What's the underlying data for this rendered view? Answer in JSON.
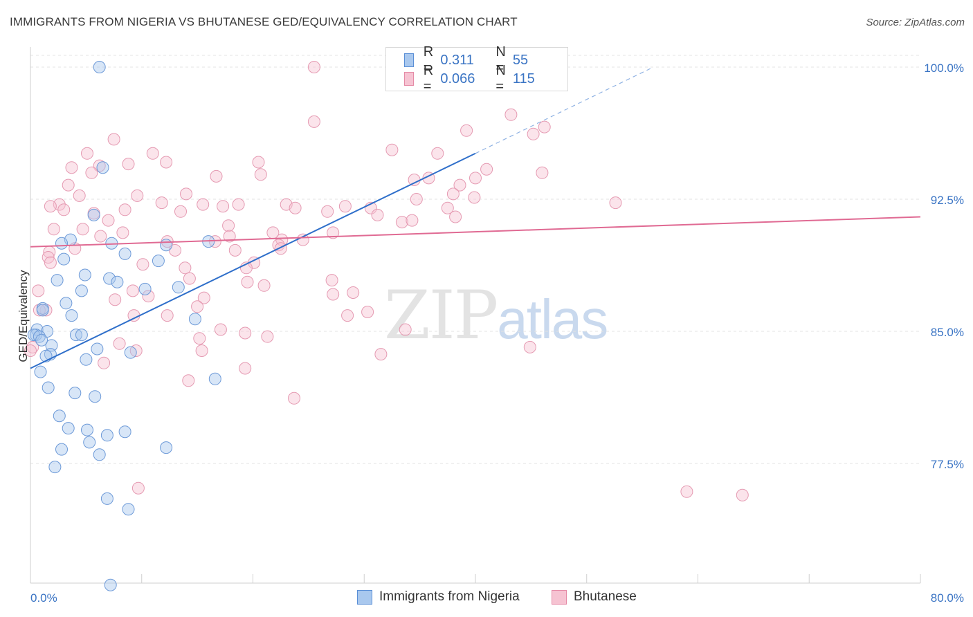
{
  "title": "IMMIGRANTS FROM NIGERIA VS BHUTANESE GED/EQUIVALENCY CORRELATION CHART",
  "source": "Source: ZipAtlas.com",
  "watermark": {
    "zip": "ZIP",
    "atlas": "atlas"
  },
  "legend": {
    "r_label": "R =",
    "n_label": "N =",
    "rows": [
      {
        "r": "0.311",
        "n": "55",
        "color": "#a9c8ee",
        "border": "#5a8fd6"
      },
      {
        "r": "0.066",
        "n": "115",
        "color": "#f6c3d2",
        "border": "#e58aa6"
      }
    ]
  },
  "bottom_legend": [
    "Immigrants from Nigeria",
    "Bhutanese"
  ],
  "colors": {
    "blue_fill": "#a9c8ee",
    "blue_line": "#2f6fca",
    "pink_fill": "#f6c3d2",
    "pink_line": "#e06a93",
    "axis_text": "#3a74c4"
  },
  "chart_data": {
    "type": "scatter",
    "title": "IMMIGRANTS FROM NIGERIA VS BHUTANESE GED/EQUIVALENCY CORRELATION CHART",
    "xlabel": "",
    "ylabel": "GED/Equivalency",
    "xlim": [
      0,
      80
    ],
    "ylim": [
      70.5,
      101.5
    ],
    "x_tick_labels": [
      "0.0%",
      "80.0%"
    ],
    "y_ticks": [
      77.5,
      85.0,
      92.5,
      100.0
    ],
    "y_tick_labels": [
      "77.5%",
      "85.0%",
      "92.5%",
      "100.0%"
    ],
    "grid": true,
    "legend_position": "top-center",
    "series": [
      {
        "name": "Immigrants from Nigeria",
        "r": 0.311,
        "n": 55,
        "trend": {
          "x0": 0.0,
          "y0": 82.9,
          "x1": 40.0,
          "y1": 95.1,
          "dash_x1": 56.0,
          "dash_y1": 100.0
        },
        "points": [
          [
            6.2,
            100.0
          ],
          [
            6.5,
            94.3
          ],
          [
            5.7,
            91.6
          ],
          [
            3.6,
            90.2
          ],
          [
            2.8,
            90.0
          ],
          [
            7.3,
            90.0
          ],
          [
            8.5,
            89.4
          ],
          [
            3.0,
            89.1
          ],
          [
            11.5,
            89.0
          ],
          [
            4.9,
            88.2
          ],
          [
            7.1,
            88.0
          ],
          [
            7.8,
            87.8
          ],
          [
            2.4,
            87.9
          ],
          [
            4.6,
            87.3
          ],
          [
            10.3,
            87.4
          ],
          [
            13.3,
            87.5
          ],
          [
            3.2,
            86.6
          ],
          [
            1.1,
            86.3
          ],
          [
            1.1,
            86.2
          ],
          [
            3.7,
            85.9
          ],
          [
            14.8,
            85.7
          ],
          [
            0.6,
            85.1
          ],
          [
            1.5,
            85.0
          ],
          [
            0.5,
            84.8
          ],
          [
            0.3,
            84.8
          ],
          [
            0.8,
            84.7
          ],
          [
            4.1,
            84.8
          ],
          [
            4.6,
            84.8
          ],
          [
            1.9,
            84.2
          ],
          [
            6.0,
            84.0
          ],
          [
            9.0,
            83.8
          ],
          [
            1.8,
            83.7
          ],
          [
            1.4,
            83.6
          ],
          [
            5.0,
            83.4
          ],
          [
            0.9,
            82.7
          ],
          [
            16.6,
            82.3
          ],
          [
            1.6,
            81.8
          ],
          [
            4.0,
            81.5
          ],
          [
            5.8,
            81.3
          ],
          [
            2.6,
            80.2
          ],
          [
            3.4,
            79.5
          ],
          [
            5.1,
            79.4
          ],
          [
            6.9,
            79.1
          ],
          [
            8.5,
            79.3
          ],
          [
            5.3,
            78.7
          ],
          [
            2.8,
            78.3
          ],
          [
            6.2,
            78.0
          ],
          [
            12.2,
            78.4
          ],
          [
            2.2,
            77.3
          ],
          [
            6.9,
            75.5
          ],
          [
            8.8,
            74.9
          ],
          [
            7.2,
            70.6
          ],
          [
            12.2,
            89.9
          ],
          [
            16.0,
            90.1
          ],
          [
            1.0,
            84.5
          ]
        ]
      },
      {
        "name": "Bhutanese",
        "r": 0.066,
        "n": 115,
        "trend": {
          "x0": 0.0,
          "y0": 89.8,
          "x1": 80.0,
          "y1": 91.5
        },
        "points": [
          [
            25.5,
            100.0
          ],
          [
            43.2,
            97.3
          ],
          [
            25.5,
            96.9
          ],
          [
            46.2,
            96.6
          ],
          [
            45.2,
            96.2
          ],
          [
            39.2,
            96.4
          ],
          [
            7.5,
            95.9
          ],
          [
            11.0,
            95.1
          ],
          [
            5.1,
            95.1
          ],
          [
            32.5,
            95.3
          ],
          [
            36.6,
            95.1
          ],
          [
            12.2,
            94.6
          ],
          [
            8.8,
            94.5
          ],
          [
            20.5,
            94.6
          ],
          [
            6.2,
            94.4
          ],
          [
            3.7,
            94.3
          ],
          [
            41.0,
            94.2
          ],
          [
            46.0,
            94.0
          ],
          [
            5.5,
            94.0
          ],
          [
            16.7,
            93.8
          ],
          [
            20.7,
            93.9
          ],
          [
            35.8,
            93.7
          ],
          [
            40.0,
            93.7
          ],
          [
            34.5,
            93.6
          ],
          [
            3.4,
            93.3
          ],
          [
            38.6,
            93.3
          ],
          [
            4.4,
            92.7
          ],
          [
            14.0,
            92.8
          ],
          [
            38.0,
            92.8
          ],
          [
            9.6,
            92.7
          ],
          [
            34.7,
            92.5
          ],
          [
            11.8,
            92.3
          ],
          [
            39.9,
            92.6
          ],
          [
            2.6,
            92.2
          ],
          [
            15.5,
            92.2
          ],
          [
            17.3,
            92.1
          ],
          [
            18.7,
            92.2
          ],
          [
            23.0,
            92.2
          ],
          [
            28.3,
            92.1
          ],
          [
            52.6,
            92.3
          ],
          [
            1.8,
            92.1
          ],
          [
            23.8,
            92.0
          ],
          [
            3.0,
            91.9
          ],
          [
            8.5,
            91.9
          ],
          [
            37.5,
            92.0
          ],
          [
            30.6,
            92.0
          ],
          [
            13.5,
            91.8
          ],
          [
            26.7,
            91.8
          ],
          [
            5.7,
            91.7
          ],
          [
            31.2,
            91.6
          ],
          [
            38.2,
            91.5
          ],
          [
            7.0,
            91.3
          ],
          [
            33.4,
            91.2
          ],
          [
            34.3,
            91.3
          ],
          [
            17.8,
            91.0
          ],
          [
            2.1,
            90.8
          ],
          [
            4.7,
            90.8
          ],
          [
            8.3,
            90.6
          ],
          [
            27.2,
            90.6
          ],
          [
            17.9,
            90.4
          ],
          [
            21.8,
            90.6
          ],
          [
            6.3,
            90.4
          ],
          [
            22.6,
            90.2
          ],
          [
            24.5,
            90.2
          ],
          [
            16.6,
            90.1
          ],
          [
            22.3,
            89.9
          ],
          [
            22.5,
            89.7
          ],
          [
            12.3,
            90.1
          ],
          [
            13.0,
            89.6
          ],
          [
            4.0,
            89.7
          ],
          [
            1.7,
            89.5
          ],
          [
            18.4,
            89.6
          ],
          [
            1.6,
            89.2
          ],
          [
            1.8,
            88.9
          ],
          [
            20.1,
            88.9
          ],
          [
            10.1,
            88.8
          ],
          [
            13.9,
            88.6
          ],
          [
            19.4,
            88.6
          ],
          [
            14.3,
            88.0
          ],
          [
            27.1,
            87.9
          ],
          [
            19.5,
            87.8
          ],
          [
            21.0,
            87.6
          ],
          [
            0.7,
            87.3
          ],
          [
            9.2,
            87.3
          ],
          [
            27.2,
            87.1
          ],
          [
            29.0,
            87.2
          ],
          [
            10.6,
            87.0
          ],
          [
            15.6,
            86.9
          ],
          [
            7.6,
            86.8
          ],
          [
            1.4,
            86.2
          ],
          [
            0.8,
            86.2
          ],
          [
            15.0,
            86.4
          ],
          [
            28.5,
            85.9
          ],
          [
            30.3,
            86.1
          ],
          [
            9.3,
            85.9
          ],
          [
            12.3,
            85.9
          ],
          [
            33.7,
            85.1
          ],
          [
            17.1,
            85.1
          ],
          [
            19.3,
            84.9
          ],
          [
            21.3,
            84.7
          ],
          [
            15.2,
            84.6
          ],
          [
            8.0,
            84.3
          ],
          [
            0.2,
            84.1
          ],
          [
            0.0,
            83.9
          ],
          [
            44.9,
            84.1
          ],
          [
            15.4,
            83.9
          ],
          [
            9.5,
            83.9
          ],
          [
            31.5,
            83.7
          ],
          [
            6.6,
            83.2
          ],
          [
            19.3,
            82.9
          ],
          [
            14.2,
            82.2
          ],
          [
            23.7,
            81.2
          ],
          [
            9.7,
            76.1
          ],
          [
            59.0,
            75.9
          ],
          [
            64.0,
            75.7
          ]
        ]
      }
    ]
  }
}
